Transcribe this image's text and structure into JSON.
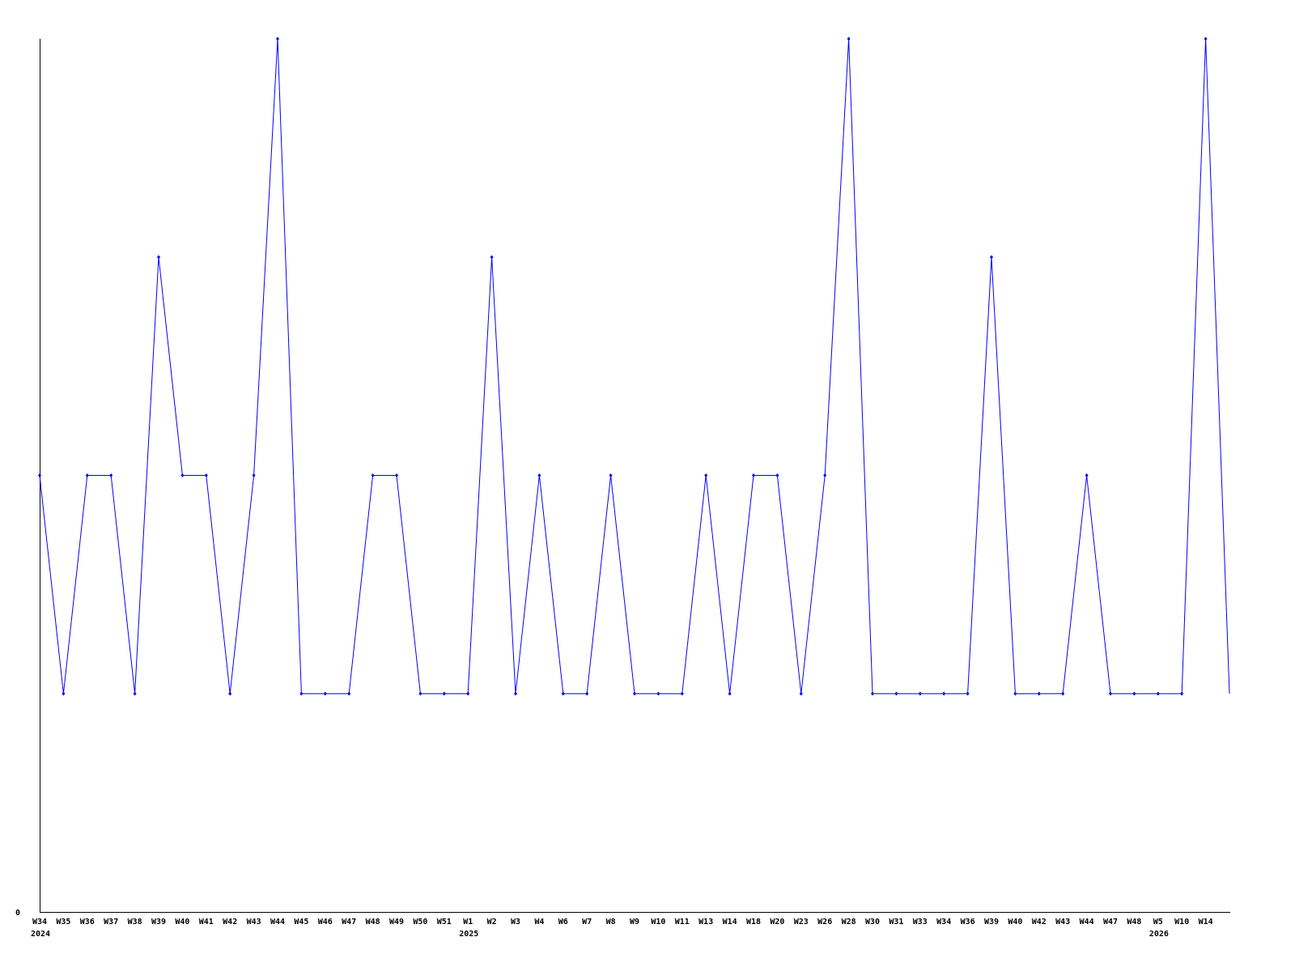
{
  "chart_data": {
    "type": "line",
    "title": "",
    "xlabel": "",
    "ylabel": "",
    "ylim": [
      0,
      4
    ],
    "y_tick_labels": [
      "0"
    ],
    "grid": false,
    "legend": "none",
    "line_color": "#0000ff",
    "categories": [
      "W34",
      "W35",
      "W36",
      "W37",
      "W38",
      "W39",
      "W40",
      "W41",
      "W42",
      "W43",
      "W44",
      "W45",
      "W46",
      "W47",
      "W48",
      "W49",
      "W50",
      "W51",
      "W1",
      "W2",
      "W3",
      "W4",
      "W6",
      "W7",
      "W8",
      "W9",
      "W10",
      "W11",
      "W13",
      "W14",
      "W18",
      "W20",
      "W23",
      "W26",
      "W28",
      "W30",
      "W31",
      "W33",
      "W34",
      "W36",
      "W39",
      "W40",
      "W42",
      "W43",
      "W44",
      "W47",
      "W48",
      "W5",
      "W10",
      "W14",
      ""
    ],
    "year_labels": [
      {
        "at": 0,
        "label": "2024"
      },
      {
        "at": 18,
        "label": "2025"
      },
      {
        "at": 47,
        "label": "2026"
      }
    ],
    "values": [
      2,
      1,
      2,
      2,
      1,
      3,
      2,
      2,
      1,
      2,
      4,
      1,
      1,
      1,
      2,
      2,
      1,
      1,
      1,
      3,
      1,
      2,
      1,
      1,
      2,
      1,
      1,
      1,
      2,
      1,
      2,
      2,
      1,
      2,
      4,
      1,
      1,
      1,
      1,
      1,
      3,
      1,
      1,
      1,
      2,
      1,
      1,
      1,
      1,
      4,
      1
    ]
  }
}
